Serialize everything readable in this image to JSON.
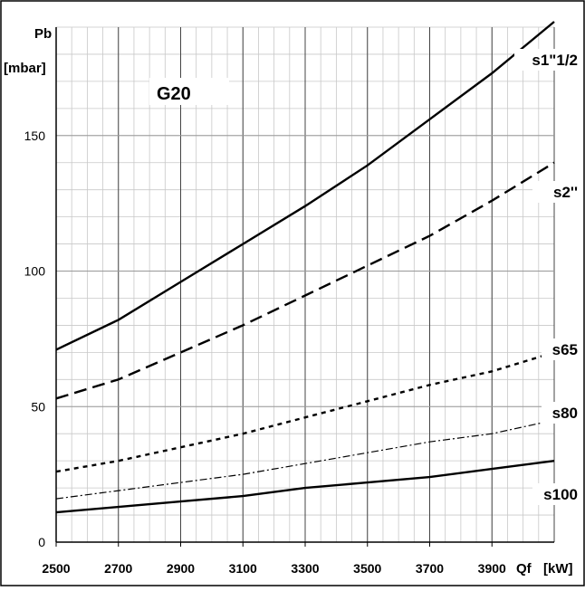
{
  "chart_data": {
    "type": "line",
    "annotation": "G20",
    "y_unit_label": "Pb",
    "y_unit": "[mbar]",
    "x_unit_label": "Qf",
    "x_unit": "[kW]",
    "xlim": [
      2500,
      4100
    ],
    "ylim": [
      0,
      190
    ],
    "x_ticks": [
      "2500",
      "2700",
      "2900",
      "3100",
      "3300",
      "3500",
      "3700",
      "3900"
    ],
    "y_ticks": [
      "0",
      "50",
      "100",
      "150"
    ],
    "grid": true,
    "x": [
      2500,
      2700,
      2900,
      3100,
      3300,
      3500,
      3700,
      3900,
      4100
    ],
    "series": [
      {
        "name": "s1\"1/2",
        "style": "solid",
        "values": [
          71,
          82,
          96,
          110,
          124,
          139,
          156,
          173,
          192
        ]
      },
      {
        "name": "s2''",
        "style": "dashed",
        "values": [
          53,
          60,
          70,
          80,
          91,
          102,
          113,
          126,
          140
        ]
      },
      {
        "name": "s65",
        "style": "dotted",
        "values": [
          26,
          30,
          35,
          40,
          46,
          52,
          58,
          63,
          70
        ]
      },
      {
        "name": "s80",
        "style": "dashdot",
        "values": [
          16,
          19,
          22,
          25,
          29,
          33,
          37,
          40,
          45
        ]
      },
      {
        "name": "s100",
        "style": "solid-thin",
        "values": [
          11,
          13,
          15,
          17,
          20,
          22,
          24,
          27,
          30
        ]
      }
    ]
  }
}
